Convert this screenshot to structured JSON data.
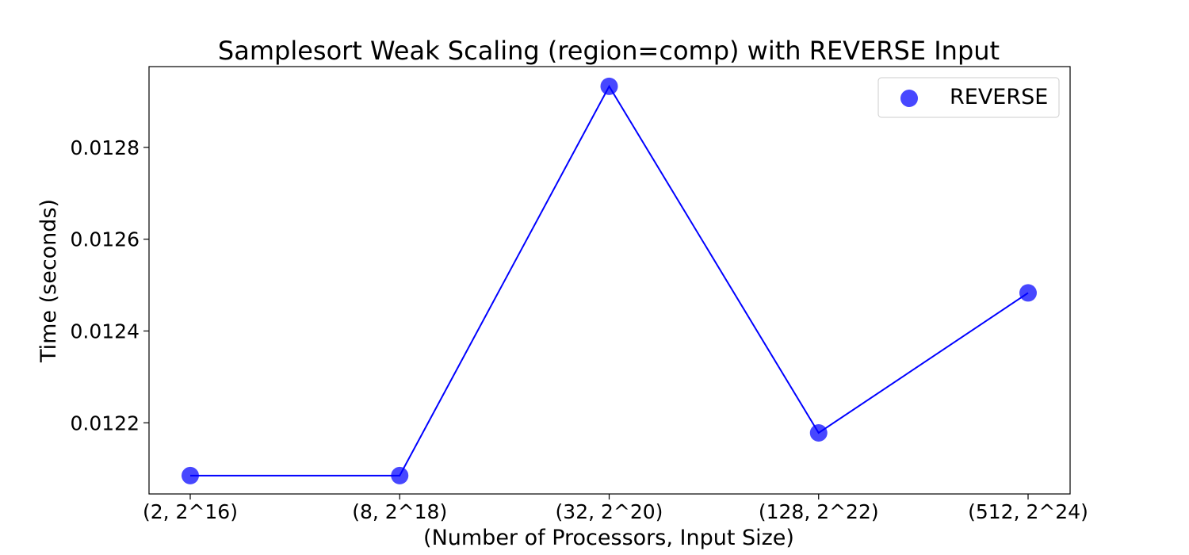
{
  "chart_data": {
    "type": "line",
    "title": "Samplesort Weak Scaling (region=comp) with REVERSE Input",
    "xlabel": "(Number of Processors, Input Size)",
    "ylabel": "Time (seconds)",
    "categories": [
      "(2, 2^16)",
      "(8, 2^18)",
      "(32, 2^20)",
      "(128, 2^22)",
      "(512, 2^24)"
    ],
    "series": [
      {
        "name": "REVERSE",
        "values": [
          0.012085,
          0.012085,
          0.012933,
          0.012178,
          0.012483
        ],
        "color": "#0000ff"
      }
    ],
    "yticks": [
      0.0122,
      0.0124,
      0.0126,
      0.0128
    ],
    "ytick_labels": [
      "0.0122",
      "0.0124",
      "0.0126",
      "0.0128"
    ],
    "ylim": [
      0.012045,
      0.012976
    ],
    "grid": false,
    "legend": "upper right"
  }
}
